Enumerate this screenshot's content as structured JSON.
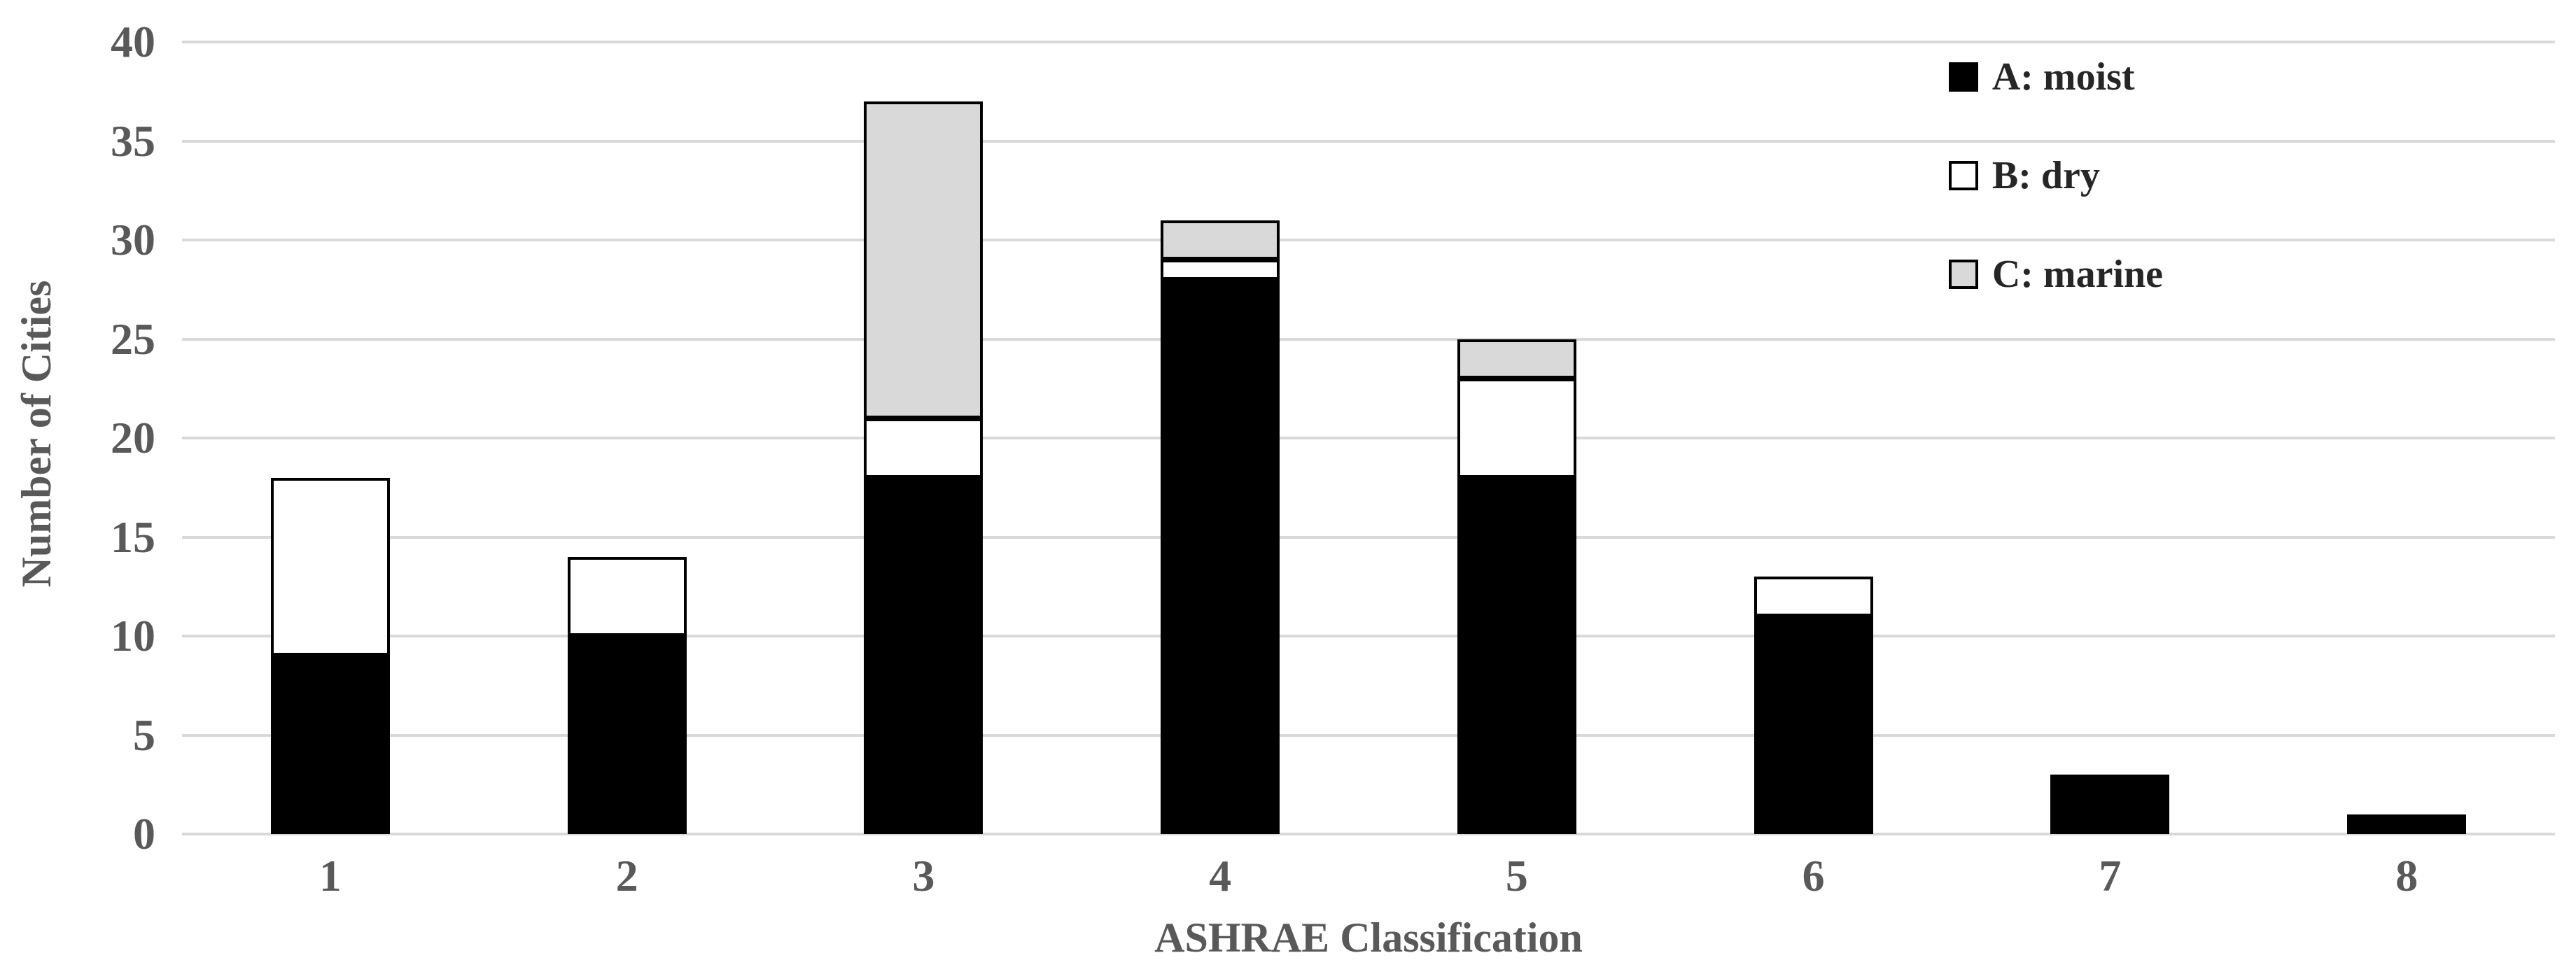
{
  "chart_data": {
    "type": "bar",
    "stacked": true,
    "title": "",
    "xlabel": "ASHRAE Classification",
    "ylabel": "Number of Cities",
    "categories": [
      "1",
      "2",
      "3",
      "4",
      "5",
      "6",
      "7",
      "8"
    ],
    "series": [
      {
        "name": "A: moist",
        "color": "#000000",
        "border": "#000000",
        "values": [
          9,
          10,
          18,
          28,
          18,
          11,
          3,
          1
        ]
      },
      {
        "name": "B: dry",
        "color": "#ffffff",
        "border": "#000000",
        "values": [
          9,
          4,
          3,
          1,
          5,
          2,
          0,
          0
        ]
      },
      {
        "name": "C: marine",
        "color": "#d9d9d9",
        "border": "#000000",
        "values": [
          0,
          0,
          16,
          2,
          2,
          0,
          0,
          0
        ]
      }
    ],
    "stack_totals": [
      18,
      14,
      37,
      31,
      25,
      13,
      3,
      1
    ],
    "ylim": [
      0,
      40
    ],
    "ytick_step": 5,
    "y_ticks": [
      "0",
      "5",
      "10",
      "15",
      "20",
      "25",
      "30",
      "35",
      "40"
    ],
    "grid": true,
    "legend_position": "top-right",
    "colors": {
      "axis_text": "#595959",
      "legend_text": "#262626",
      "gridline": "#d9d9d9",
      "background": "#ffffff"
    }
  }
}
